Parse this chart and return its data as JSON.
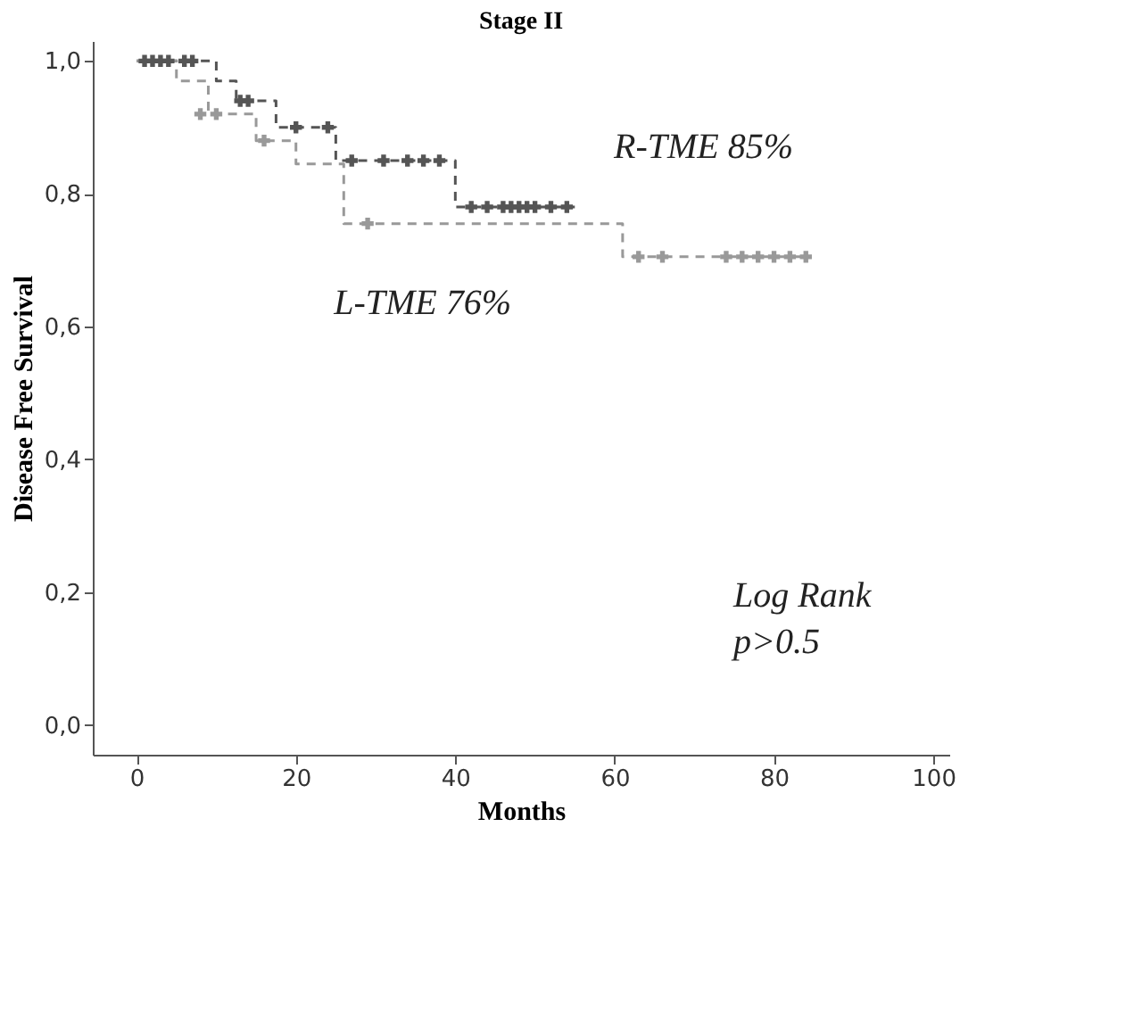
{
  "chart_data": {
    "type": "step",
    "title": "Stage II",
    "xlabel": "Months",
    "ylabel": "Disease Free Survival",
    "xlim": [
      -5.5,
      102
    ],
    "ylim": [
      -0.045,
      1.03
    ],
    "xticks": [
      0,
      20,
      40,
      60,
      80,
      100
    ],
    "yticks": [
      {
        "value": 0,
        "label": "0,0"
      },
      {
        "value": 0.2,
        "label": "0,2"
      },
      {
        "value": 0.4,
        "label": "0,4"
      },
      {
        "value": 0.6,
        "label": "0,6"
      },
      {
        "value": 0.8,
        "label": "0,8"
      },
      {
        "value": 1,
        "label": "1,0"
      }
    ],
    "grid": false,
    "line_style": "dashed",
    "series": [
      {
        "color": "#555555",
        "x": [
          0,
          10,
          12.5,
          17.5,
          25,
          40,
          55
        ],
        "values": [
          1.0,
          0.97,
          0.94,
          0.9,
          0.85,
          0.78,
          0.78
        ]
      },
      {
        "color": "#999999",
        "x": [
          0,
          5,
          9,
          15,
          20,
          26,
          61,
          84
        ],
        "values": [
          1.0,
          0.97,
          0.92,
          0.88,
          0.845,
          0.755,
          0.705,
          0.705
        ]
      },
      {
        "type": "scatter",
        "marker": "cross",
        "color": "#555555",
        "x": [
          1,
          2,
          3,
          4,
          6,
          7,
          13,
          14,
          20,
          24,
          27,
          31,
          34,
          36,
          38,
          42,
          44,
          46,
          47,
          48,
          49,
          50,
          52,
          54
        ],
        "values": [
          1.0,
          1.0,
          1.0,
          1.0,
          1.0,
          1.0,
          0.94,
          0.94,
          0.9,
          0.9,
          0.85,
          0.85,
          0.85,
          0.85,
          0.85,
          0.78,
          0.78,
          0.78,
          0.78,
          0.78,
          0.78,
          0.78,
          0.78,
          0.78
        ]
      },
      {
        "type": "scatter",
        "marker": "cross",
        "color": "#999999",
        "x": [
          8,
          10,
          16,
          29,
          63,
          66,
          74,
          76,
          78,
          80,
          82,
          84
        ],
        "values": [
          0.92,
          0.92,
          0.88,
          0.755,
          0.705,
          0.705,
          0.705,
          0.705,
          0.705,
          0.705,
          0.705,
          0.705
        ]
      }
    ],
    "annotations": [
      "R-TME 85%",
      "L-TME 76%",
      "Log Rank",
      "p>0.5"
    ]
  }
}
